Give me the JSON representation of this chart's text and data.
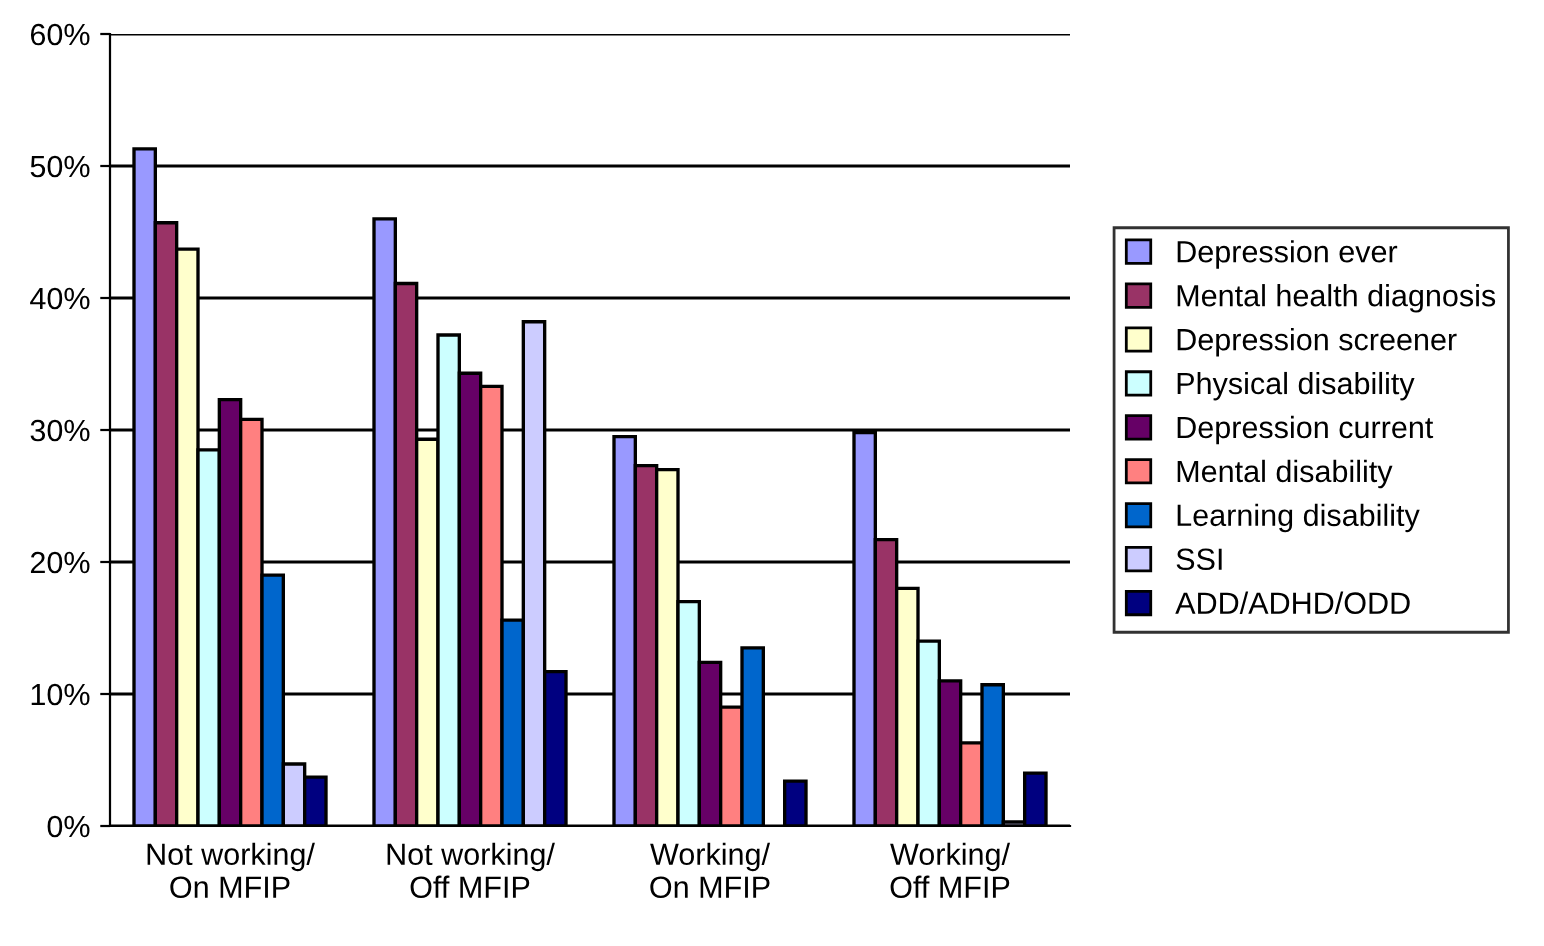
{
  "chart_data": {
    "type": "bar",
    "categories": [
      "Not working/\nOn MFIP",
      "Not working/\nOff MFIP",
      "Working/\nOn MFIP",
      "Working/\nOff MFIP"
    ],
    "series": [
      {
        "name": "Depression ever",
        "color": "#9999ff",
        "values": [
          51.3,
          46.0,
          29.5,
          29.8
        ]
      },
      {
        "name": "Mental health diagnosis",
        "color": "#993366",
        "values": [
          45.7,
          41.1,
          27.3,
          21.7
        ]
      },
      {
        "name": "Depression screener",
        "color": "#ffffcc",
        "values": [
          43.7,
          29.3,
          27.0,
          18.0
        ]
      },
      {
        "name": "Physical disability",
        "color": "#ccffff",
        "values": [
          28.5,
          37.2,
          17.0,
          14.0
        ]
      },
      {
        "name": "Depression current",
        "color": "#660066",
        "values": [
          32.3,
          34.3,
          12.4,
          11.0
        ]
      },
      {
        "name": "Mental disability",
        "color": "#ff8080",
        "values": [
          30.8,
          33.3,
          9.0,
          6.3
        ]
      },
      {
        "name": "Learning disability",
        "color": "#0066cc",
        "values": [
          19.0,
          15.6,
          13.5,
          10.7
        ]
      },
      {
        "name": "SSI",
        "color": "#ccccff",
        "values": [
          4.7,
          38.2,
          null,
          0.3
        ]
      },
      {
        "name": "ADD/ADHD/ODD",
        "color": "#000080",
        "values": [
          3.7,
          11.7,
          3.4,
          4.0
        ]
      }
    ],
    "ylim": [
      0,
      60
    ],
    "yticks": [
      {
        "value": 0,
        "label": "0%"
      },
      {
        "value": 10,
        "label": "10%"
      },
      {
        "value": 20,
        "label": "20%"
      },
      {
        "value": 30,
        "label": "30%"
      },
      {
        "value": 40,
        "label": "40%"
      },
      {
        "value": 50,
        "label": "50%"
      },
      {
        "value": 60,
        "label": "60%"
      }
    ],
    "grid": "y",
    "legend": "right"
  }
}
